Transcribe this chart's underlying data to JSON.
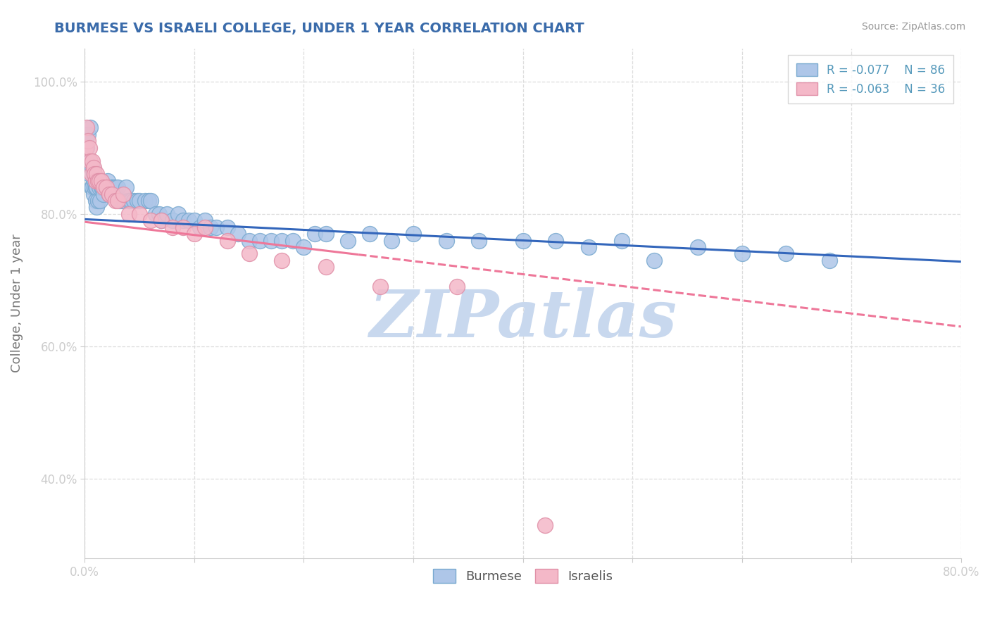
{
  "title": "BURMESE VS ISRAELI COLLEGE, UNDER 1 YEAR CORRELATION CHART",
  "source_text": "Source: ZipAtlas.com",
  "legend_burmese": "Burmese",
  "legend_israelis": "Israelis",
  "R_burmese": -0.077,
  "N_burmese": 86,
  "R_israelis": -0.063,
  "N_israelis": 36,
  "burmese_color": "#aec6e8",
  "israeli_color": "#f4b8c8",
  "burmese_edge_color": "#7aaad0",
  "israeli_edge_color": "#e090a8",
  "burmese_line_color": "#3366bb",
  "israeli_line_color": "#ee7799",
  "watermark_color": "#c8d8ee",
  "background_color": "#ffffff",
  "grid_color": "#dddddd",
  "title_color": "#3a6baa",
  "axis_label_color": "#5599bb",
  "ylabel_color": "#777777",
  "xlim": [
    0.0,
    0.8
  ],
  "ylim": [
    0.28,
    1.05
  ],
  "blue_line_y0": 0.792,
  "blue_line_y1": 0.728,
  "pink_line_y0": 0.788,
  "pink_line_y1": 0.63,
  "burmese_x": [
    0.001,
    0.002,
    0.003,
    0.003,
    0.004,
    0.005,
    0.005,
    0.006,
    0.006,
    0.007,
    0.007,
    0.008,
    0.008,
    0.009,
    0.009,
    0.01,
    0.01,
    0.011,
    0.011,
    0.012,
    0.012,
    0.013,
    0.014,
    0.015,
    0.015,
    0.016,
    0.017,
    0.018,
    0.02,
    0.021,
    0.022,
    0.024,
    0.025,
    0.027,
    0.028,
    0.03,
    0.032,
    0.034,
    0.036,
    0.038,
    0.04,
    0.042,
    0.045,
    0.048,
    0.05,
    0.055,
    0.058,
    0.06,
    0.065,
    0.068,
    0.07,
    0.075,
    0.08,
    0.085,
    0.09,
    0.095,
    0.1,
    0.105,
    0.11,
    0.115,
    0.12,
    0.13,
    0.14,
    0.15,
    0.16,
    0.17,
    0.18,
    0.19,
    0.2,
    0.21,
    0.22,
    0.24,
    0.26,
    0.28,
    0.3,
    0.33,
    0.36,
    0.4,
    0.43,
    0.46,
    0.49,
    0.52,
    0.56,
    0.6,
    0.64,
    0.68
  ],
  "burmese_y": [
    0.91,
    0.9,
    0.92,
    0.87,
    0.86,
    0.93,
    0.88,
    0.87,
    0.84,
    0.87,
    0.84,
    0.86,
    0.83,
    0.85,
    0.84,
    0.84,
    0.82,
    0.84,
    0.81,
    0.85,
    0.82,
    0.84,
    0.82,
    0.85,
    0.84,
    0.84,
    0.83,
    0.84,
    0.84,
    0.85,
    0.83,
    0.84,
    0.84,
    0.84,
    0.84,
    0.84,
    0.82,
    0.82,
    0.82,
    0.84,
    0.82,
    0.82,
    0.82,
    0.82,
    0.82,
    0.82,
    0.82,
    0.82,
    0.8,
    0.8,
    0.79,
    0.8,
    0.79,
    0.8,
    0.79,
    0.79,
    0.79,
    0.78,
    0.79,
    0.78,
    0.78,
    0.78,
    0.77,
    0.76,
    0.76,
    0.76,
    0.76,
    0.76,
    0.75,
    0.77,
    0.77,
    0.76,
    0.77,
    0.76,
    0.77,
    0.76,
    0.76,
    0.76,
    0.76,
    0.75,
    0.76,
    0.73,
    0.75,
    0.74,
    0.74,
    0.73
  ],
  "israeli_x": [
    0.001,
    0.002,
    0.003,
    0.004,
    0.005,
    0.006,
    0.007,
    0.008,
    0.009,
    0.01,
    0.011,
    0.012,
    0.013,
    0.015,
    0.017,
    0.02,
    0.022,
    0.025,
    0.028,
    0.03,
    0.035,
    0.04,
    0.05,
    0.06,
    0.07,
    0.08,
    0.09,
    0.1,
    0.11,
    0.13,
    0.15,
    0.18,
    0.22,
    0.27,
    0.34,
    0.42
  ],
  "israeli_y": [
    0.9,
    0.93,
    0.91,
    0.9,
    0.88,
    0.86,
    0.88,
    0.87,
    0.86,
    0.85,
    0.86,
    0.85,
    0.85,
    0.85,
    0.84,
    0.84,
    0.83,
    0.83,
    0.82,
    0.82,
    0.83,
    0.8,
    0.8,
    0.79,
    0.79,
    0.78,
    0.78,
    0.77,
    0.78,
    0.76,
    0.74,
    0.73,
    0.72,
    0.69,
    0.69,
    0.33
  ]
}
